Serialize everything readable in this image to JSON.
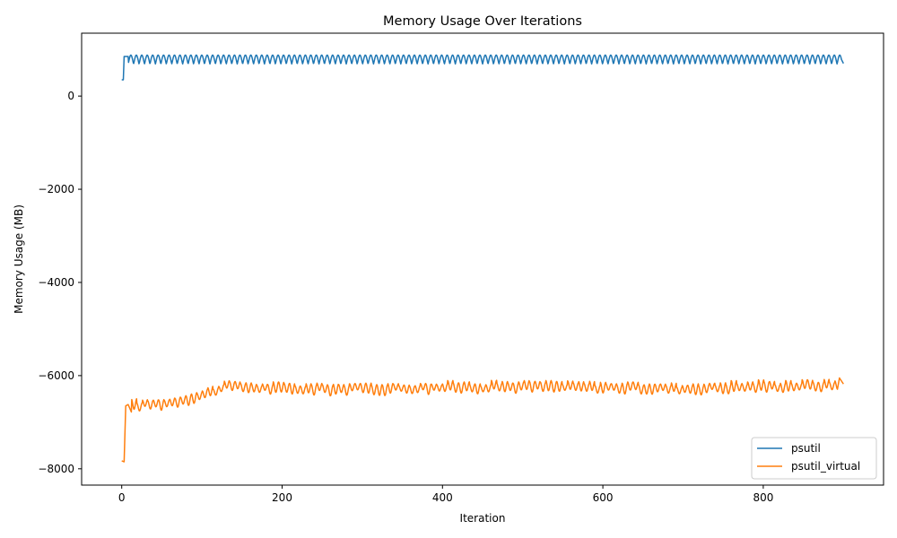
{
  "chart_data": {
    "type": "line",
    "title": "Memory Usage Over Iterations",
    "xlabel": "Iteration",
    "ylabel": "Memory Usage (MB)",
    "xlim": [
      -50,
      950
    ],
    "ylim": [
      -8350,
      1350
    ],
    "xticks": [
      0,
      200,
      400,
      600,
      800
    ],
    "yticks": [
      0,
      -2000,
      -4000,
      -6000,
      -8000
    ],
    "xtick_labels": [
      "0",
      "200",
      "400",
      "600",
      "800"
    ],
    "ytick_labels": [
      "0",
      "−2000",
      "−4000",
      "−6000",
      "−8000"
    ],
    "legend_position": "lower-right",
    "grid": false,
    "series": [
      {
        "name": "psutil",
        "color": "#1f77b4",
        "start": [
          [
            0,
            350
          ],
          [
            2,
            350
          ],
          [
            3,
            850
          ],
          [
            8,
            850
          ]
        ],
        "n_points": 901,
        "baseline": 690,
        "peak": 880,
        "period": 6.8,
        "end": [
          [
            900,
            700
          ]
        ]
      },
      {
        "name": "psutil_virtual",
        "color": "#ff7f0e",
        "start": [
          [
            0,
            -7830
          ],
          [
            3,
            -7850
          ],
          [
            5,
            -6650
          ],
          [
            8,
            -6620
          ],
          [
            12,
            -6780
          ]
        ],
        "n_points": 901,
        "trend": [
          [
            12,
            -6650
          ],
          [
            60,
            -6580
          ],
          [
            100,
            -6420
          ],
          [
            130,
            -6230
          ],
          [
            200,
            -6280
          ],
          [
            300,
            -6280
          ],
          [
            400,
            -6250
          ],
          [
            500,
            -6230
          ],
          [
            600,
            -6250
          ],
          [
            700,
            -6280
          ],
          [
            800,
            -6230
          ],
          [
            900,
            -6200
          ]
        ],
        "amplitude": 90,
        "period": 6.8,
        "end": [
          [
            895,
            -6050
          ],
          [
            900,
            -6180
          ]
        ]
      }
    ]
  }
}
